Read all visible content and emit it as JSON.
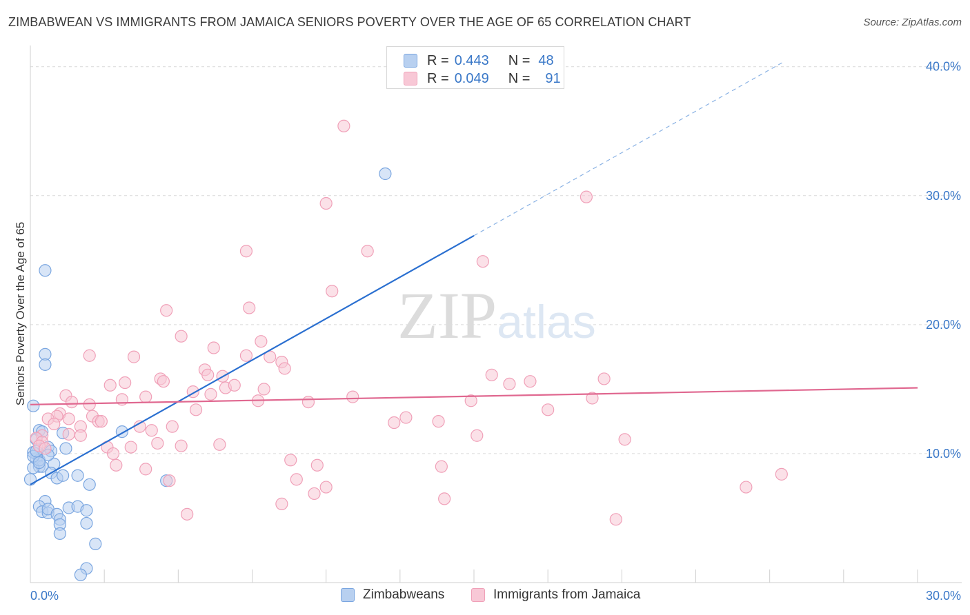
{
  "chart_data": {
    "type": "scatter",
    "title": "ZIMBABWEAN VS IMMIGRANTS FROM JAMAICA SENIORS POVERTY OVER THE AGE OF 65 CORRELATION CHART",
    "source": "Source: ZipAtlas.com",
    "ylabel": "Seniors Poverty Over the Age of 65",
    "xlabel": "",
    "xlim": [
      0,
      30
    ],
    "ylim": [
      0,
      40
    ],
    "x_tick_labels": [
      "0.0%",
      "30.0%"
    ],
    "y_tick_labels": [
      "10.0%",
      "20.0%",
      "30.0%",
      "40.0%"
    ],
    "y_ticks": [
      10,
      20,
      30,
      40
    ],
    "grid": true,
    "watermark": "ZIPatlas",
    "legend_stats": [
      {
        "name": "Zimbabweans",
        "r_label": "R =",
        "r_value": "0.443",
        "n_label": "N =",
        "n_value": "48"
      },
      {
        "name": "Immigrants from Jamaica",
        "r_label": "R =",
        "r_value": "0.049",
        "n_label": "N =",
        "n_value": "91"
      }
    ],
    "series": [
      {
        "name": "Zimbabweans",
        "color": "#7aa6e0",
        "fill": "#b8d0f0",
        "trend_color": "#2a6fd0",
        "trend": {
          "x0": 0,
          "y0": 7.6,
          "x1": 15,
          "y1": 26.9,
          "x_dash_end": 25.5
        },
        "points": [
          [
            0.1,
            13.7
          ],
          [
            0.3,
            11.8
          ],
          [
            0.5,
            24.2
          ],
          [
            0.5,
            17.7
          ],
          [
            0.5,
            16.9
          ],
          [
            12.0,
            31.7
          ],
          [
            0.2,
            10.0
          ],
          [
            0.2,
            9.6
          ],
          [
            0.3,
            9.0
          ],
          [
            0.4,
            9.0
          ],
          [
            0.1,
            8.9
          ],
          [
            0.6,
            10.5
          ],
          [
            0.7,
            10.2
          ],
          [
            0.8,
            9.2
          ],
          [
            0.7,
            8.5
          ],
          [
            0.9,
            8.1
          ],
          [
            1.1,
            11.6
          ],
          [
            1.1,
            8.3
          ],
          [
            1.2,
            10.4
          ],
          [
            0.5,
            6.3
          ],
          [
            0.3,
            5.9
          ],
          [
            0.4,
            5.5
          ],
          [
            0.6,
            5.4
          ],
          [
            0.6,
            5.7
          ],
          [
            0.9,
            5.3
          ],
          [
            1.0,
            4.9
          ],
          [
            1.0,
            4.5
          ],
          [
            1.0,
            3.8
          ],
          [
            1.3,
            5.8
          ],
          [
            1.6,
            5.9
          ],
          [
            1.9,
            5.6
          ],
          [
            1.9,
            4.6
          ],
          [
            2.0,
            7.6
          ],
          [
            2.2,
            3.0
          ],
          [
            1.9,
            1.1
          ],
          [
            1.7,
            0.6
          ],
          [
            3.1,
            11.7
          ],
          [
            4.6,
            7.9
          ],
          [
            0.2,
            11.1
          ],
          [
            0.0,
            8.0
          ],
          [
            0.1,
            10.1
          ],
          [
            0.3,
            9.5
          ],
          [
            0.1,
            9.8
          ],
          [
            0.2,
            10.2
          ],
          [
            0.4,
            11.7
          ],
          [
            0.6,
            9.9
          ],
          [
            0.3,
            9.3
          ],
          [
            1.6,
            8.3
          ]
        ]
      },
      {
        "name": "Immigrants from Jamaica",
        "color": "#f0a0b8",
        "fill": "#f8c8d6",
        "trend_color": "#e06890",
        "trend": {
          "x0": 0,
          "y0": 13.8,
          "x1": 30,
          "y1": 15.1
        },
        "points": [
          [
            10.6,
            35.4
          ],
          [
            10.0,
            29.4
          ],
          [
            18.8,
            29.9
          ],
          [
            7.3,
            25.7
          ],
          [
            11.4,
            25.7
          ],
          [
            15.3,
            24.9
          ],
          [
            10.2,
            22.6
          ],
          [
            4.6,
            21.1
          ],
          [
            7.4,
            21.3
          ],
          [
            5.1,
            19.1
          ],
          [
            7.8,
            18.7
          ],
          [
            6.2,
            18.2
          ],
          [
            2.0,
            17.6
          ],
          [
            3.5,
            17.5
          ],
          [
            7.3,
            17.6
          ],
          [
            8.1,
            17.5
          ],
          [
            8.5,
            17.1
          ],
          [
            5.9,
            16.5
          ],
          [
            8.6,
            16.6
          ],
          [
            6.0,
            16.1
          ],
          [
            6.5,
            16.0
          ],
          [
            4.4,
            15.8
          ],
          [
            4.5,
            15.6
          ],
          [
            3.2,
            15.5
          ],
          [
            2.7,
            15.3
          ],
          [
            6.6,
            15.1
          ],
          [
            6.9,
            15.3
          ],
          [
            7.9,
            15.0
          ],
          [
            5.5,
            14.8
          ],
          [
            15.6,
            16.1
          ],
          [
            16.9,
            15.6
          ],
          [
            19.4,
            15.8
          ],
          [
            16.2,
            15.4
          ],
          [
            1.2,
            14.5
          ],
          [
            3.1,
            14.2
          ],
          [
            3.9,
            14.4
          ],
          [
            6.1,
            14.6
          ],
          [
            7.7,
            14.1
          ],
          [
            10.9,
            14.4
          ],
          [
            19.0,
            14.3
          ],
          [
            9.4,
            14.0
          ],
          [
            14.9,
            14.1
          ],
          [
            1.4,
            14.0
          ],
          [
            2.0,
            13.8
          ],
          [
            5.6,
            13.4
          ],
          [
            17.5,
            13.4
          ],
          [
            1.0,
            13.1
          ],
          [
            0.9,
            12.9
          ],
          [
            2.1,
            12.9
          ],
          [
            0.6,
            12.7
          ],
          [
            1.3,
            12.7
          ],
          [
            2.3,
            12.5
          ],
          [
            2.4,
            12.5
          ],
          [
            12.7,
            12.8
          ],
          [
            12.3,
            12.4
          ],
          [
            13.8,
            12.5
          ],
          [
            3.7,
            12.1
          ],
          [
            4.8,
            12.1
          ],
          [
            0.8,
            12.3
          ],
          [
            1.7,
            12.1
          ],
          [
            4.1,
            11.8
          ],
          [
            0.4,
            11.4
          ],
          [
            1.3,
            11.5
          ],
          [
            1.7,
            11.4
          ],
          [
            15.1,
            11.4
          ],
          [
            20.1,
            11.1
          ],
          [
            0.2,
            11.2
          ],
          [
            0.4,
            10.9
          ],
          [
            0.3,
            10.6
          ],
          [
            4.3,
            10.8
          ],
          [
            5.1,
            10.6
          ],
          [
            2.6,
            10.5
          ],
          [
            3.4,
            10.5
          ],
          [
            6.4,
            10.7
          ],
          [
            2.8,
            10.0
          ],
          [
            0.5,
            10.4
          ],
          [
            8.8,
            9.5
          ],
          [
            9.7,
            9.1
          ],
          [
            13.9,
            9.0
          ],
          [
            2.9,
            9.1
          ],
          [
            3.9,
            8.8
          ],
          [
            4.7,
            7.9
          ],
          [
            9.0,
            8.0
          ],
          [
            10.0,
            7.4
          ],
          [
            25.4,
            8.4
          ],
          [
            24.2,
            7.4
          ],
          [
            9.6,
            6.9
          ],
          [
            8.5,
            6.1
          ],
          [
            14.0,
            6.5
          ],
          [
            5.3,
            5.3
          ],
          [
            19.8,
            4.9
          ]
        ]
      }
    ]
  },
  "legend_bottom": [
    "Zimbabweans",
    "Immigrants from Jamaica"
  ]
}
